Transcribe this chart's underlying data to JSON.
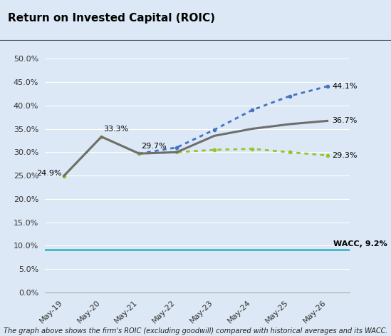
{
  "title": "Return on Invested Capital (ROIC)",
  "footnote": "The graph above shows the firm's ROIC (excluding goodwill) compared with historical averages and its WACC.",
  "x_labels": [
    "May-19",
    "May-20",
    "May-21",
    "May-22",
    "May-23",
    "May-24",
    "May-25",
    "May-26"
  ],
  "x_values": [
    0,
    1,
    2,
    3,
    4,
    5,
    6,
    7
  ],
  "roic_values": [
    0.249,
    0.333,
    0.297,
    0.3,
    0.335,
    0.35,
    0.36,
    0.367
  ],
  "upper_hist_values": [
    null,
    null,
    0.297,
    0.31,
    0.348,
    0.39,
    0.42,
    0.441
  ],
  "lower_hist_values": [
    0.249,
    0.333,
    0.297,
    0.3,
    0.305,
    0.307,
    0.3,
    0.293
  ],
  "wacc_value": 0.092,
  "wacc_label": "WACC, 9.2%",
  "roic_color": "#6e6e6e",
  "upper_hist_color": "#4472c4",
  "lower_hist_color": "#9dc229",
  "wacc_color": "#31b0c1",
  "outer_bg_color": "#dce8f5",
  "plot_bg_color": "#dce8f5",
  "title_bg_color": "#ffffff",
  "ylim": [
    0,
    0.525
  ],
  "yticks": [
    0.0,
    0.05,
    0.1,
    0.15,
    0.2,
    0.25,
    0.3,
    0.35,
    0.4,
    0.45,
    0.5
  ],
  "title_fontsize": 11,
  "tick_fontsize": 8,
  "annotation_fontsize": 8,
  "wacc_fontsize": 8,
  "footnote_fontsize": 7
}
